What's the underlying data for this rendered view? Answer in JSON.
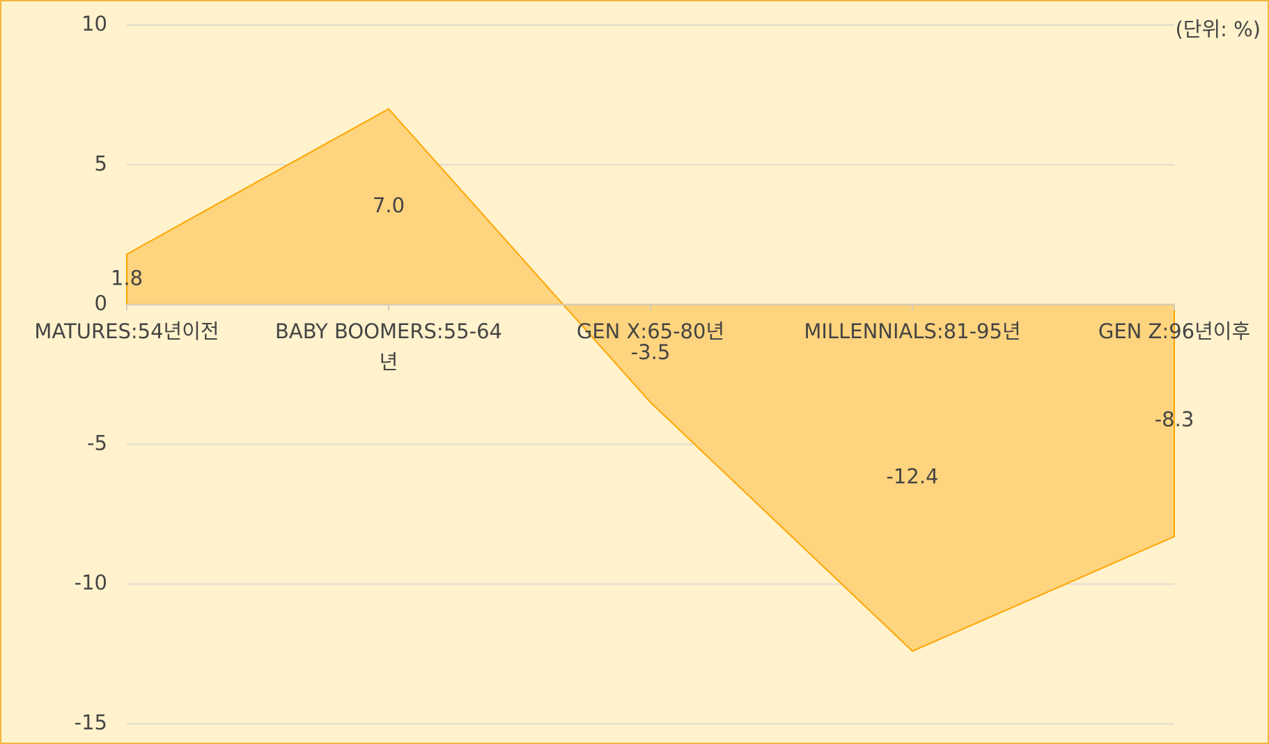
{
  "chart_data": {
    "type": "area",
    "unit_note": "(단위: %)",
    "categories": [
      "MATURES:54년이전",
      "BABY BOOMERS:55-64년",
      "GEN X:65-80년",
      "MILLENNIALS:81-95년",
      "GEN Z:96년이후"
    ],
    "values": [
      1.8,
      7.0,
      -3.5,
      -12.4,
      -8.3
    ],
    "value_labels": [
      "1.8",
      "7.0",
      "-3.5",
      "-12.4",
      "-8.3"
    ],
    "color": "#ffd47e",
    "line_color": "#ffa500",
    "ylim": [
      -15,
      10
    ],
    "yticks": [
      -15,
      -10,
      -5,
      0,
      5,
      10
    ],
    "grid": true
  }
}
